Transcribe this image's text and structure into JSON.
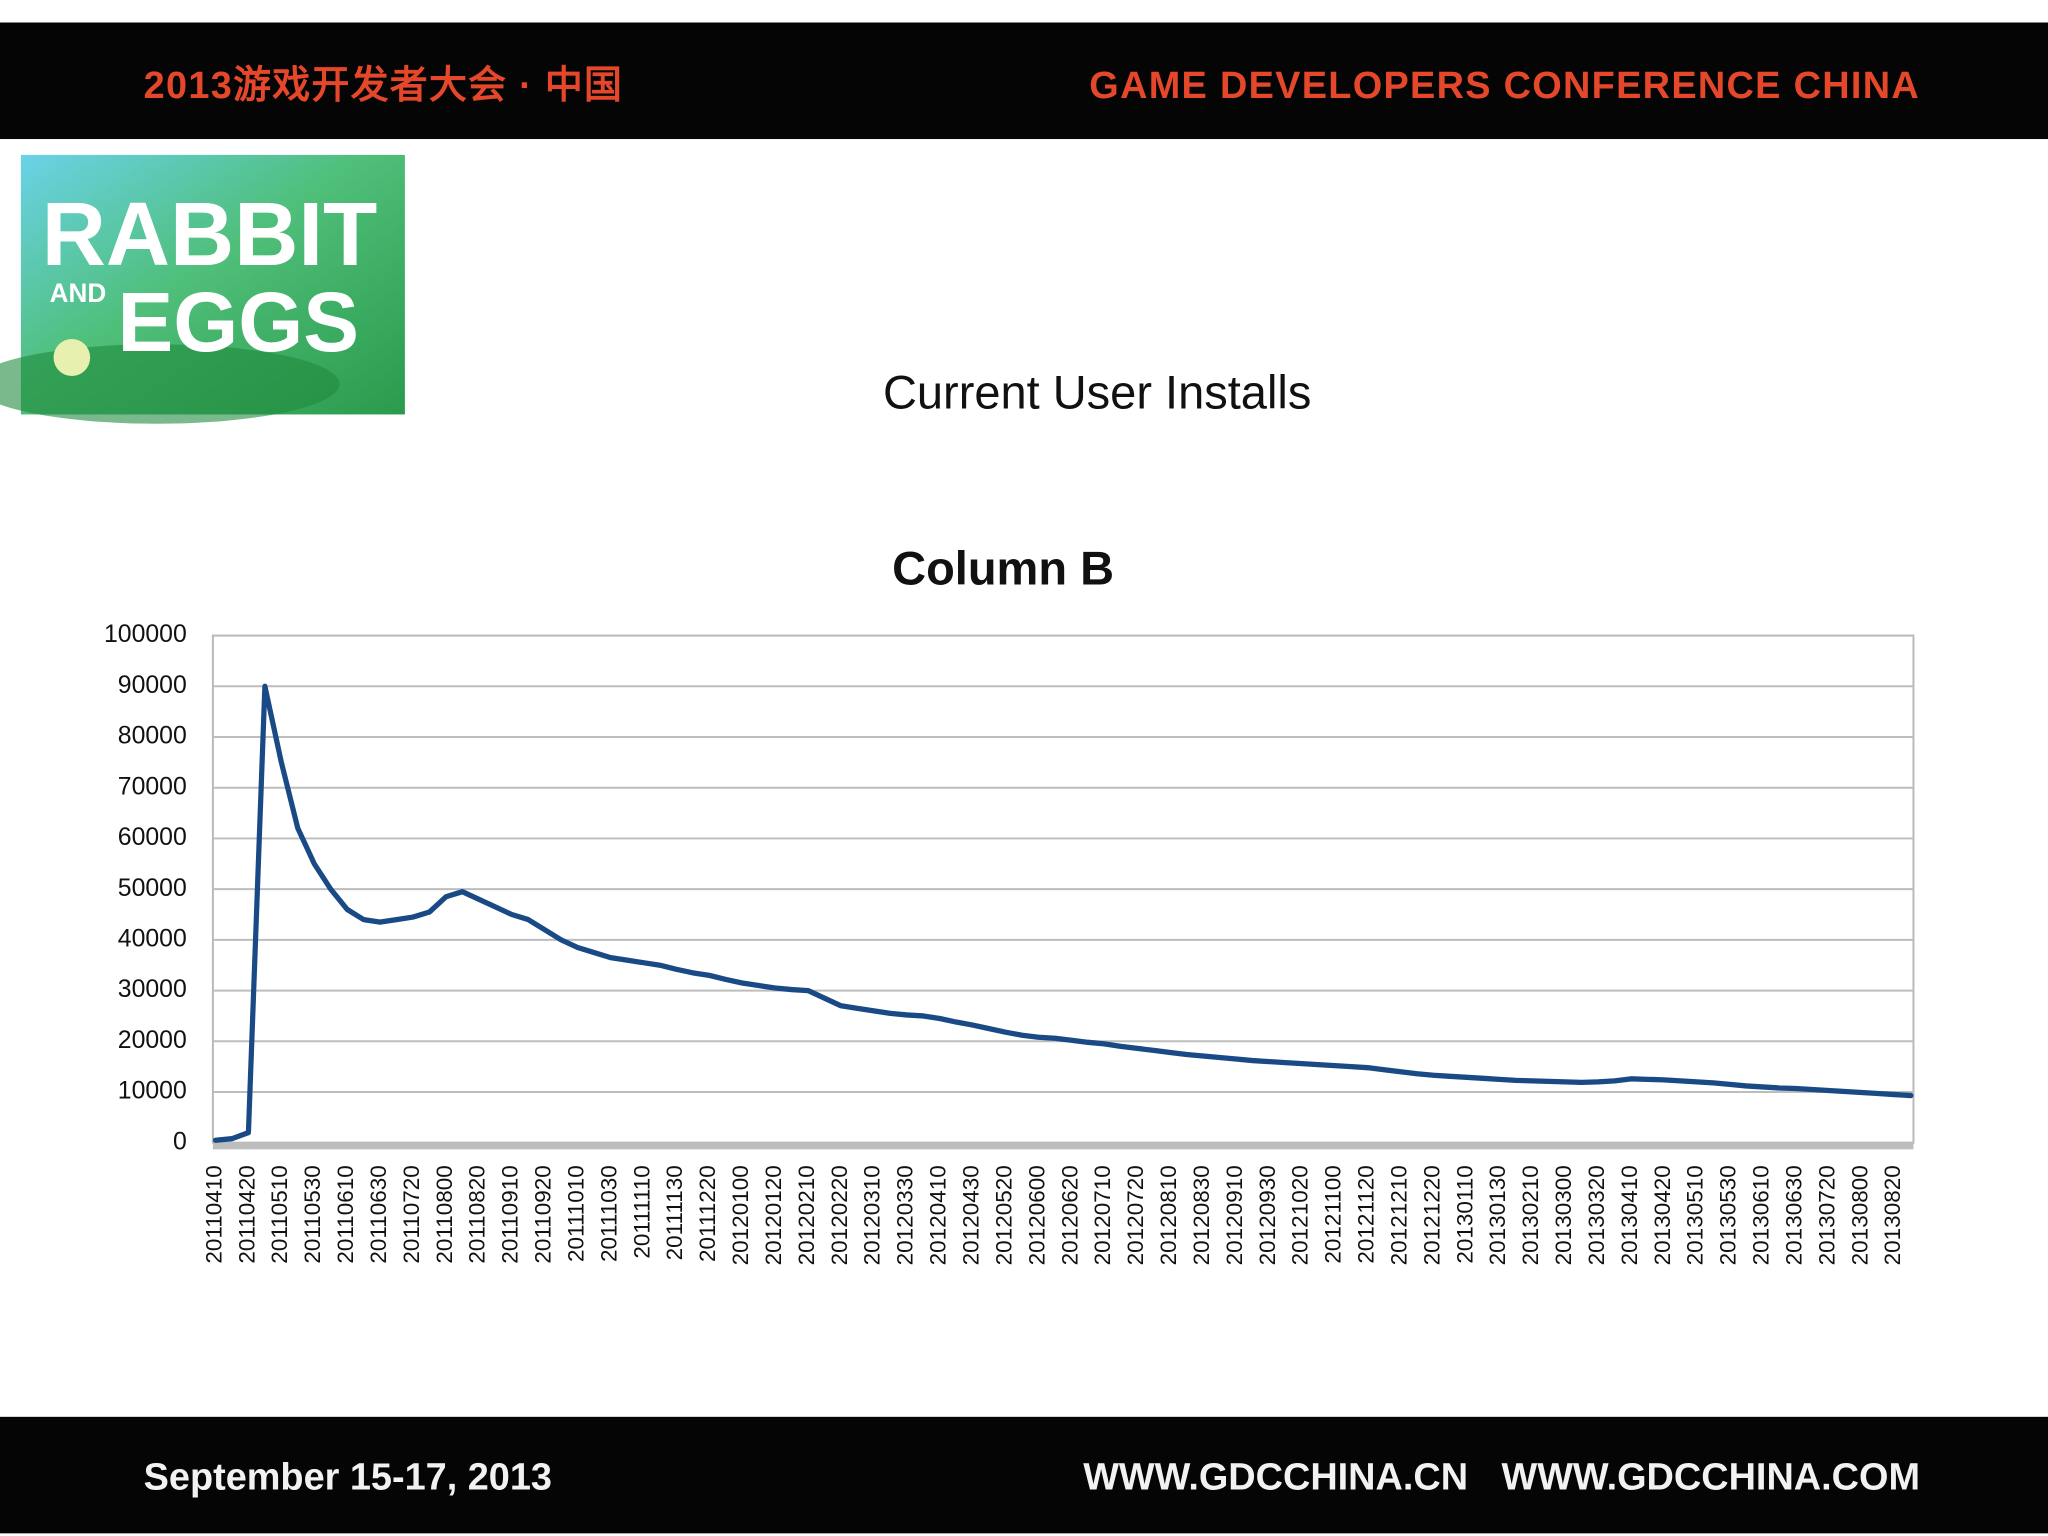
{
  "header": {
    "left": "2013游戏开发者大会 · 中国",
    "right": "GAME DEVELOPERS CONFERENCE CHINA"
  },
  "logo": {
    "line1": "RABBIT",
    "small": "AND",
    "line2": "EGGS"
  },
  "slide_title": "Current User Installs",
  "footer": {
    "date": "September 15-17, 2013",
    "site1": "WWW.GDCCHINA.CN",
    "site2": "WWW.GDCCHINA.COM"
  },
  "chart_data": {
    "type": "line",
    "title": "Column B",
    "color": "#1a4a86",
    "grid": true,
    "ylim": [
      0,
      100000
    ],
    "yticks": [
      0,
      10000,
      20000,
      30000,
      40000,
      50000,
      60000,
      70000,
      80000,
      90000,
      100000
    ],
    "categories": [
      "20110410",
      null,
      "20110420",
      null,
      "20110510",
      null,
      "20110530",
      null,
      "20110610",
      null,
      "20110630",
      null,
      "20110720",
      null,
      "20110800",
      null,
      "20110820",
      null,
      "20110910",
      null,
      "20110920",
      null,
      "20111010",
      null,
      "20111030",
      null,
      "20111110",
      null,
      "20111130",
      null,
      "20111220",
      null,
      "20120100",
      null,
      "20120120",
      null,
      "20120210",
      null,
      "20120220",
      null,
      "20120310",
      null,
      "20120330",
      null,
      "20120410",
      null,
      "20120430",
      null,
      "20120520",
      null,
      "20120600",
      null,
      "20120620",
      null,
      "20120710",
      null,
      "20120720",
      null,
      "20120810",
      null,
      "20120830",
      null,
      "20120910",
      null,
      "20120930",
      null,
      "20121020",
      null,
      "20121100",
      null,
      "20121120",
      null,
      "20121210",
      null,
      "20121220",
      null,
      "20130110",
      null,
      "20130130",
      null,
      "20130210",
      null,
      "20130300",
      null,
      "20130320",
      null,
      "20130410",
      null,
      "20130420",
      null,
      "20130510",
      null,
      "20130530",
      null,
      "20130610",
      null,
      "20130630",
      null,
      "20130720",
      null,
      "20130800",
      null,
      "20130820",
      null
    ],
    "values": [
      500,
      800,
      2000,
      90000,
      75000,
      62000,
      55000,
      50000,
      46000,
      44000,
      43500,
      44000,
      44500,
      45500,
      48500,
      49500,
      48000,
      46500,
      45000,
      44000,
      42000,
      40000,
      38500,
      37500,
      36500,
      36000,
      35500,
      35000,
      34200,
      33500,
      33000,
      32200,
      31500,
      31000,
      30500,
      30200,
      30000,
      28500,
      27000,
      26500,
      26000,
      25500,
      25200,
      25000,
      24500,
      23800,
      23200,
      22500,
      21800,
      21200,
      20800,
      20600,
      20200,
      19800,
      19500,
      19000,
      18600,
      18200,
      17800,
      17400,
      17100,
      16800,
      16500,
      16200,
      16000,
      15800,
      15600,
      15400,
      15200,
      15000,
      14800,
      14400,
      14000,
      13600,
      13300,
      13100,
      12900,
      12700,
      12500,
      12300,
      12200,
      12100,
      12000,
      11900,
      12000,
      12200,
      12600,
      12500,
      12400,
      12200,
      12000,
      11800,
      11500,
      11200,
      11000,
      10800,
      10700,
      10500,
      10300,
      10100,
      9900,
      9700,
      9500,
      9300
    ]
  }
}
